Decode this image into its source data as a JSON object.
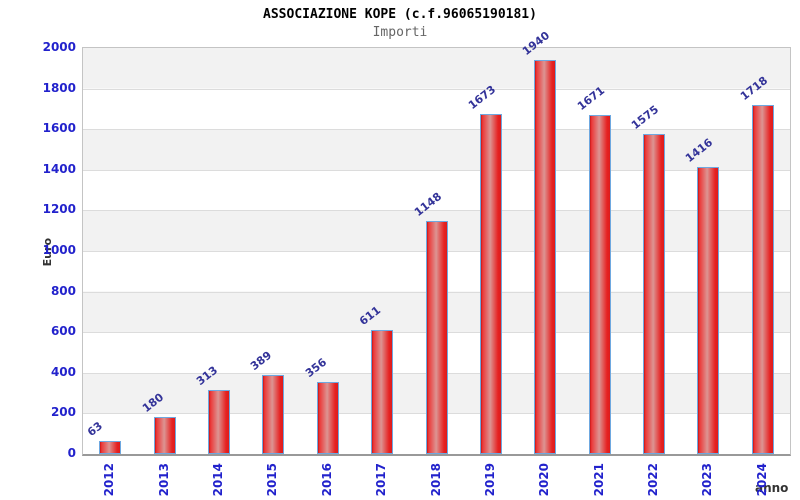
{
  "chart_data": {
    "type": "bar",
    "title": "ASSOCIAZIONE KOPE (c.f.96065190181)",
    "subtitle": "Importi",
    "xlabel": "anno",
    "ylabel": "Euro",
    "categories": [
      "2012",
      "2013",
      "2014",
      "2015",
      "2016",
      "2017",
      "2018",
      "2019",
      "2020",
      "2021",
      "2022",
      "2023",
      "2024"
    ],
    "values": [
      63,
      180,
      313,
      389,
      356,
      611,
      1148,
      1673,
      1940,
      1671,
      1575,
      1416,
      1718
    ],
    "ylim": [
      0,
      2000
    ],
    "yticks": [
      0,
      200,
      400,
      600,
      800,
      1000,
      1200,
      1400,
      1600,
      1800,
      2000
    ],
    "grid": true,
    "legend_position": "none",
    "colors": {
      "bar_border": "#6ea8e0",
      "bar_fill_edge": "#e02020",
      "bar_fill_center": "#dc9492",
      "tick_label": "#2222cc",
      "value_label": "#333399",
      "axis_title": "#333333",
      "band_gray": "#f2f2f2",
      "band_white": "#ffffff",
      "gridline": "#dcdcdc",
      "plot_border": "#c4c4c4",
      "title_color": "#000000",
      "subtitle_color": "#666666"
    }
  }
}
